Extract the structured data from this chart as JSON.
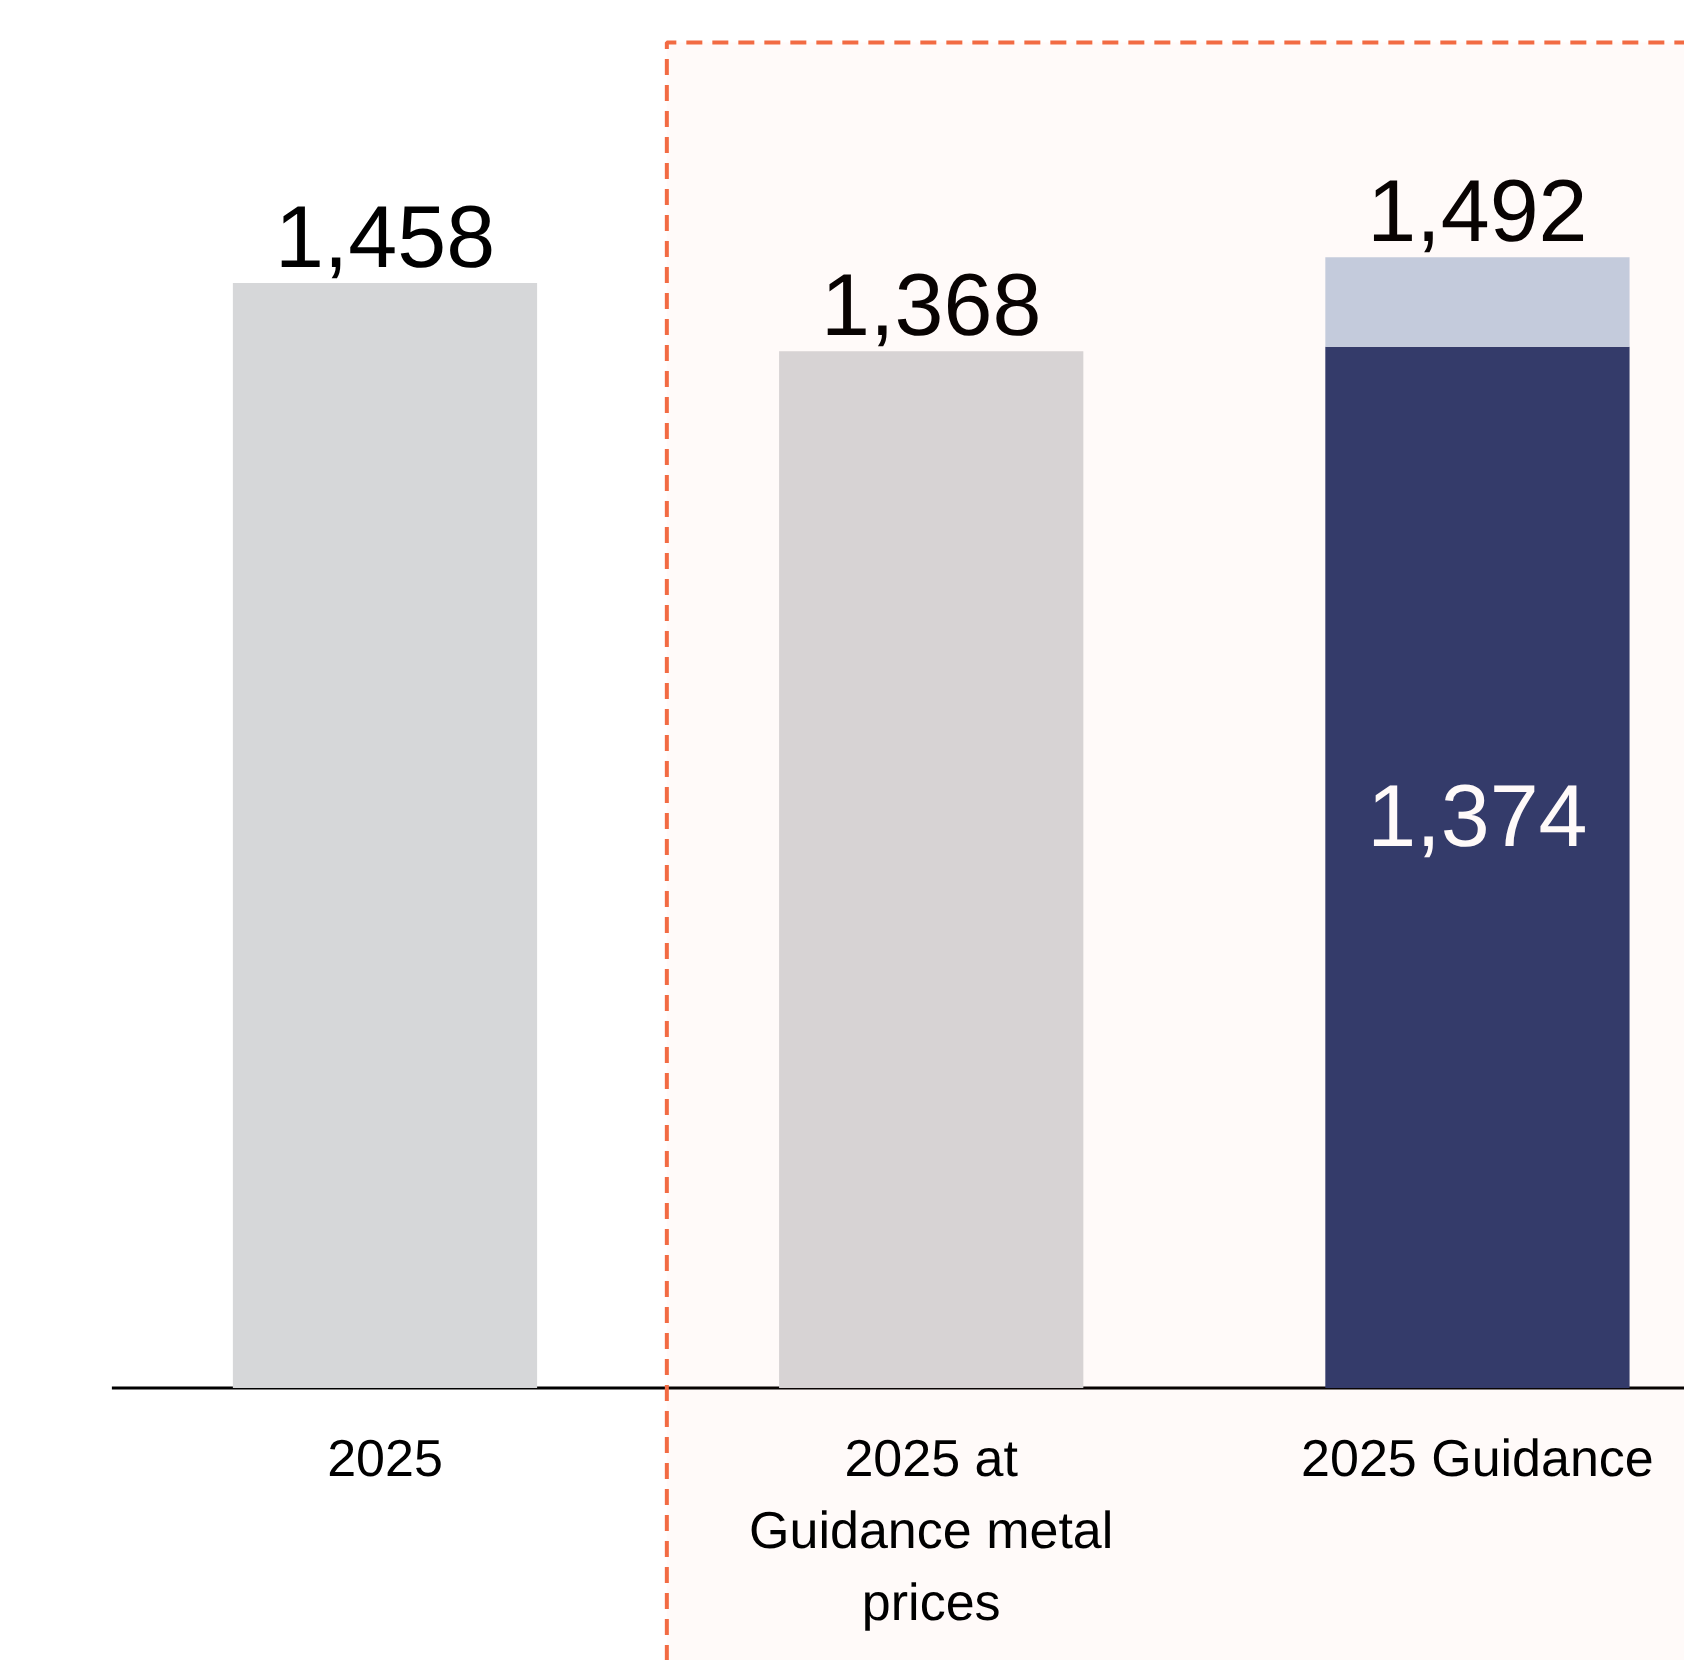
{
  "chart_data": {
    "type": "bar",
    "stacked": true,
    "categories": [
      "2025",
      "2025 at Guidance metal prices",
      "2025 Guidance"
    ],
    "series": [
      {
        "colors": [
          "#d6d7d9",
          "#d6d7d9",
          "#2e3a6c"
        ],
        "values": [
          1458,
          1368,
          1374
        ],
        "value_labels": [
          null,
          null,
          "1,374"
        ]
      },
      {
        "color": "#c3cfe2",
        "values": [
          null,
          null,
          118
        ]
      }
    ],
    "totals": [
      "1,458",
      "1,368",
      "1,492"
    ],
    "ylim": [
      -360,
      1830
    ],
    "bands": [
      {
        "axis": "x",
        "from": "2025 at Guidance metal prices",
        "to": "2025 Guidance",
        "color": "#f26b43"
      }
    ],
    "grid": false
  }
}
